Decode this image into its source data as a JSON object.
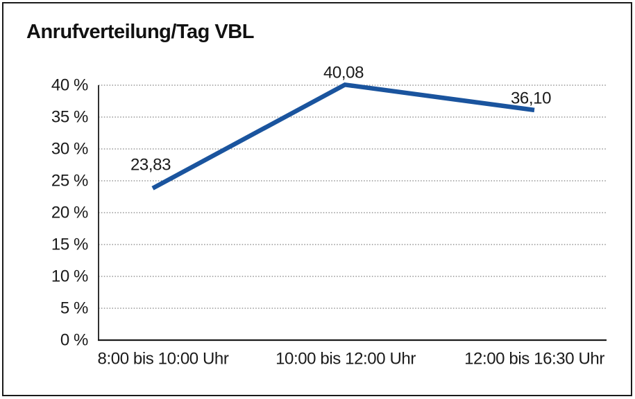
{
  "title": "Anrufverteilung/Tag VBL",
  "chart_data": {
    "type": "line",
    "title": "Anrufverteilung/Tag VBL",
    "categories": [
      "8:00 bis 10:00 Uhr",
      "10:00 bis 12:00 Uhr",
      "12:00 bis 16:30 Uhr"
    ],
    "values": [
      23.83,
      40.08,
      36.1
    ],
    "data_labels": [
      "23,83",
      "40,08",
      "36,10"
    ],
    "xlabel": "",
    "ylabel": "",
    "ylim": [
      0,
      40
    ],
    "ytick_step": 5,
    "ytick_labels": [
      "0 %",
      "5 %",
      "10 %",
      "15 %",
      "20 %",
      "25 %",
      "30 %",
      "35 %",
      "40 %"
    ],
    "grid": "horizontal-dotted",
    "legend": "none",
    "line_color": "#1A549E",
    "gridline_color": "#7f7f7f",
    "axis_color": "#1a1a1a",
    "text_color": "#1a1a1a",
    "background_color": "#ffffff"
  }
}
